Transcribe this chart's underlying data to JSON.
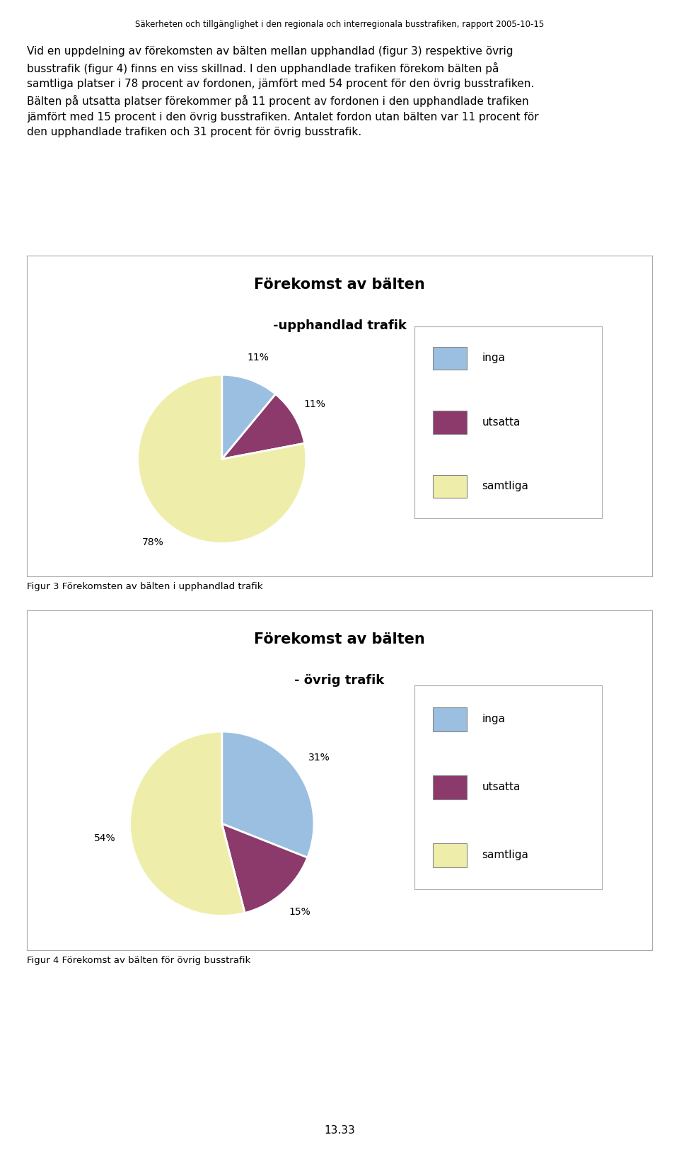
{
  "page_title": "Säkerheten och tillgänglighet i den regionala och interregionala busstrafiken, rapport 2005-10-15",
  "body_text": "Vid en uppdelning av förekomsten av bälten mellan upphandlad (figur 3) respektive övrig\nbusstrafik (figur 4) finns en viss skillnad. I den upphandlade trafiken förekom bälten på\nsamtliga platser i 78 procent av fordonen, jämfört med 54 procent för den övrig busstrafiken.\nBälten på utsatta platser förekommer på 11 procent av fordonen i den upphandlade trafiken\njämfört med 15 procent i den övrig busstrafiken. Antalet fordon utan bälten var 11 procent för\nden upphandlade trafiken och 31 procent för övrig busstrafik.",
  "chart1": {
    "title_line1": "Förekomst av bälten",
    "title_line2": "-upphandlad trafik",
    "values": [
      11,
      11,
      78
    ],
    "labels": [
      "inga",
      "utsatta",
      "samtliga"
    ],
    "colors": [
      "#9BBFE0",
      "#8B3A6B",
      "#EEEEAA"
    ],
    "pct_labels": [
      "11%",
      "11%",
      "78%"
    ],
    "figcaption": "Figur 3 Förekomsten av bälten i upphandlad trafik"
  },
  "chart2": {
    "title_line1": "Förekomst av bälten",
    "title_line2": "- övrig trafik",
    "values": [
      31,
      15,
      54
    ],
    "labels": [
      "inga",
      "utsatta",
      "samtliga"
    ],
    "colors": [
      "#9BBFE0",
      "#8B3A6B",
      "#EEEEAA"
    ],
    "pct_labels": [
      "31%",
      "15%",
      "54%"
    ],
    "figcaption": "Figur 4 Förekomst av bälten för övrig busstrafik"
  },
  "page_number": "13.33",
  "background_color": "#FFFFFF",
  "box_edge": "#AAAAAA",
  "title_fontsize": 15,
  "subtitle_fontsize": 13,
  "body_fontsize": 11,
  "caption_fontsize": 9.5,
  "page_title_fontsize": 8.5,
  "legend_fontsize": 11,
  "pct_fontsize": 10
}
